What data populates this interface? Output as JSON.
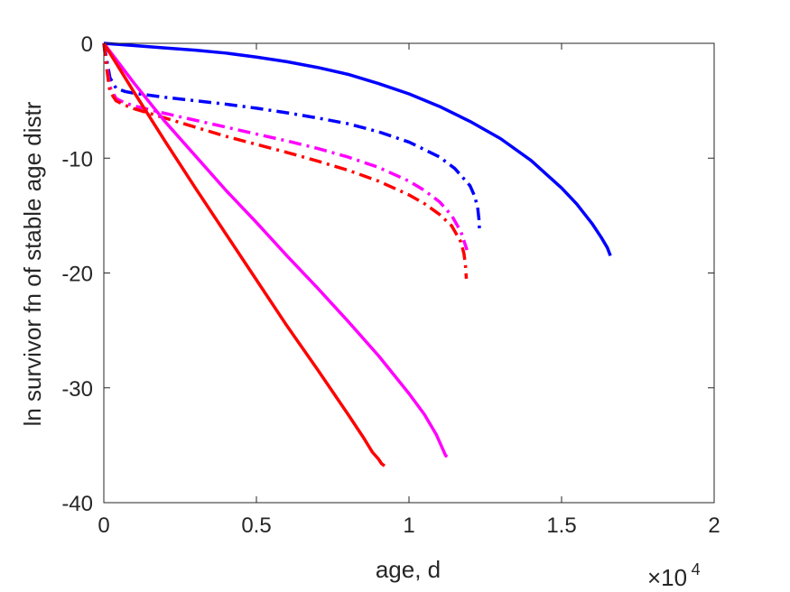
{
  "chart_data": {
    "type": "line",
    "title": "",
    "xlabel": "age, d",
    "ylabel": "ln survivor fn of stable age distr",
    "x_multiplier_label": {
      "base": "×10",
      "exponent": "4"
    },
    "xlim": [
      0,
      20000
    ],
    "ylim": [
      -40,
      0
    ],
    "xticks": [
      0,
      5000,
      10000,
      15000,
      20000
    ],
    "xtick_labels": [
      "0",
      "0.5",
      "1",
      "1.5",
      "2"
    ],
    "yticks": [
      0,
      -10,
      -20,
      -30,
      -40
    ],
    "ytick_labels": [
      "0",
      "-10",
      "-20",
      "-30",
      "-40"
    ],
    "grid": false,
    "box": true,
    "series": [
      {
        "color": "#0000ff",
        "style": "solid",
        "x": [
          0,
          1000,
          2000,
          3000,
          4000,
          5000,
          6000,
          7000,
          8000,
          9000,
          10000,
          11000,
          12000,
          13000,
          14000,
          15000,
          15500,
          16000,
          16300,
          16500,
          16600
        ],
        "y": [
          0,
          -0.2,
          -0.4,
          -0.6,
          -0.85,
          -1.2,
          -1.6,
          -2.1,
          -2.7,
          -3.5,
          -4.4,
          -5.5,
          -6.8,
          -8.3,
          -10.2,
          -12.6,
          -14.0,
          -15.7,
          -16.9,
          -17.8,
          -18.5
        ]
      },
      {
        "color": "#0000ff",
        "style": "dashdot",
        "x": [
          0,
          100,
          200,
          400,
          700,
          1000,
          2000,
          3000,
          4000,
          5000,
          6000,
          7000,
          8000,
          9000,
          10000,
          11000,
          11500,
          12000,
          12150,
          12250,
          12300,
          12310
        ],
        "y": [
          0,
          -1.5,
          -3.0,
          -3.9,
          -4.2,
          -4.35,
          -4.7,
          -5.0,
          -5.3,
          -5.65,
          -6.05,
          -6.5,
          -7.0,
          -7.7,
          -8.6,
          -9.9,
          -10.9,
          -12.4,
          -13.3,
          -14.3,
          -15.5,
          -16.5
        ]
      },
      {
        "color": "#ff00ff",
        "style": "dashdot",
        "x": [
          0,
          100,
          200,
          400,
          700,
          1000,
          2000,
          3000,
          4000,
          5000,
          6000,
          7000,
          8000,
          9000,
          10000,
          10500,
          11000,
          11400,
          11700,
          11850,
          11900
        ],
        "y": [
          0,
          -2.0,
          -3.8,
          -4.8,
          -5.2,
          -5.45,
          -6.1,
          -6.7,
          -7.3,
          -7.9,
          -8.5,
          -9.15,
          -9.9,
          -10.8,
          -12.0,
          -12.8,
          -13.8,
          -15.0,
          -16.4,
          -17.6,
          -18.0
        ]
      },
      {
        "color": "#ff0000",
        "style": "dashdot",
        "x": [
          0,
          100,
          200,
          400,
          700,
          1000,
          2000,
          3000,
          4000,
          5000,
          6000,
          7000,
          8000,
          9000,
          10000,
          10500,
          11000,
          11400,
          11700,
          11800,
          11850,
          11880
        ],
        "y": [
          0,
          -2.3,
          -4.2,
          -5.0,
          -5.4,
          -5.7,
          -6.5,
          -7.3,
          -8.1,
          -8.8,
          -9.5,
          -10.25,
          -11.05,
          -12.0,
          -13.2,
          -13.95,
          -14.9,
          -15.9,
          -17.3,
          -18.3,
          -19.3,
          -20.5
        ]
      },
      {
        "color": "#ff00ff",
        "style": "solid",
        "x": [
          0,
          1000,
          2000,
          3000,
          4000,
          5000,
          6000,
          7000,
          8000,
          9000,
          10000,
          10500,
          10900,
          11100,
          11200,
          11250
        ],
        "y": [
          0,
          -3.5,
          -6.8,
          -9.8,
          -12.8,
          -15.6,
          -18.5,
          -21.3,
          -24.2,
          -27.2,
          -30.5,
          -32.3,
          -34.1,
          -35.3,
          -35.9,
          -36.0
        ]
      },
      {
        "color": "#ff0000",
        "style": "solid",
        "x": [
          0,
          1000,
          2000,
          3000,
          4000,
          5000,
          6000,
          7000,
          8000,
          8500,
          8800,
          9000,
          9100,
          9200
        ],
        "y": [
          0,
          -4.3,
          -8.5,
          -12.6,
          -16.6,
          -20.6,
          -24.6,
          -28.4,
          -32.3,
          -34.3,
          -35.6,
          -36.2,
          -36.6,
          -36.8
        ]
      }
    ]
  }
}
